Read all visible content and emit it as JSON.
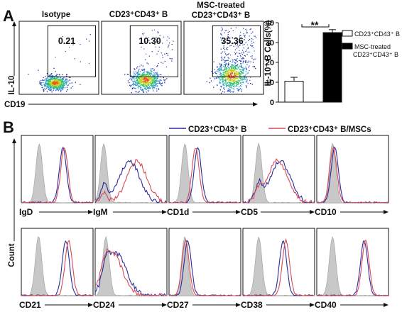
{
  "figure": {
    "panel_a_letter": "A",
    "panel_b_letter": "B"
  },
  "chart_data": [
    {
      "type": "scatter",
      "panel": "A",
      "description_visible": "flow cytometry dot plots",
      "plots": [
        {
          "title_line1": "",
          "title_line2": "Isotype",
          "gate_value": "0.21"
        },
        {
          "title_line1": "",
          "title_line2": "CD23⁺CD43⁺ B",
          "gate_value": "10.30"
        },
        {
          "title_line1": "MSC-treated",
          "title_line2": "CD23⁺CD43⁺ B",
          "gate_value": "35.36"
        }
      ],
      "ylabel": "IL-10",
      "xlabel": "CD19"
    },
    {
      "type": "bar",
      "panel": "A",
      "categories": [
        "CD23⁺CD43⁺ B",
        "MSC-treated CD23⁺CD43⁺ B"
      ],
      "values": [
        10.5,
        35
      ],
      "errors": [
        2,
        1.5
      ],
      "ylabel": "IL-10⁺ B Cells(%)",
      "ylim": [
        0,
        40
      ],
      "yticks": [
        "0",
        "10",
        "20",
        "30",
        "40"
      ],
      "significance": "**",
      "legend": [
        {
          "label": "CD23⁺CD43⁺ B",
          "fill": "#ffffff"
        },
        {
          "label_line1": "MSC-treated",
          "label_line2": "CD23⁺CD43⁺ B",
          "fill": "#000000"
        }
      ]
    },
    {
      "type": "line",
      "panel": "B",
      "series": [
        {
          "name": "CD23⁺CD43⁺ B",
          "color": "#2b2b9b"
        },
        {
          "name": "CD23⁺CD43⁺ B/MSCs",
          "color": "#d84a55"
        }
      ],
      "isotype_fill": "#c8c8c8",
      "ylabel": "Count",
      "histograms": [
        {
          "marker": "IgD",
          "iso": 0.25,
          "blue": 0.58,
          "red": 0.6
        },
        {
          "marker": "IgM",
          "iso": 0.12,
          "blue": 0.48,
          "red": 0.58
        },
        {
          "marker": "CD1d",
          "iso": 0.22,
          "blue": 0.4,
          "red": 0.37
        },
        {
          "marker": "CD5",
          "iso": 0.22,
          "blue": 0.52,
          "red": 0.48
        },
        {
          "marker": "CD10",
          "iso": 0.22,
          "blue": 0.25,
          "red": 0.23
        },
        {
          "marker": "CD21",
          "iso": 0.24,
          "blue": 0.62,
          "red": 0.66
        },
        {
          "marker": "CD24",
          "iso": 0.15,
          "blue": 0.3,
          "red": 0.24
        },
        {
          "marker": "CD27",
          "iso": 0.22,
          "blue": 0.26,
          "red": 0.23
        },
        {
          "marker": "CD38",
          "iso": 0.22,
          "blue": 0.56,
          "red": 0.6
        },
        {
          "marker": "CD40",
          "iso": 0.22,
          "blue": 0.66,
          "red": 0.68
        }
      ]
    }
  ]
}
